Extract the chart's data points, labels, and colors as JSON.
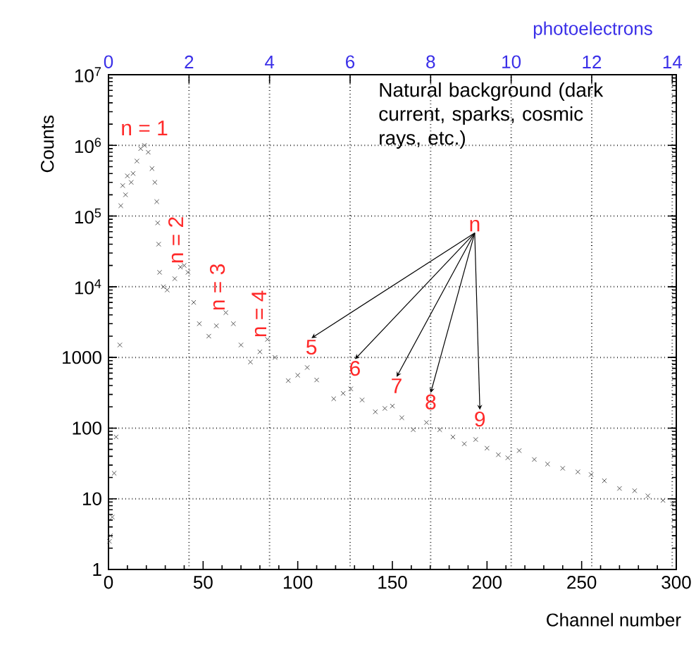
{
  "chart_data": {
    "type": "scatter",
    "xlabel": "Channel number",
    "ylabel": "Counts",
    "x2label": "photoelectrons",
    "xlim": [
      0,
      300
    ],
    "xticks": [
      0,
      50,
      100,
      150,
      200,
      250,
      300
    ],
    "x2lim": [
      0,
      14.1
    ],
    "x2ticks": [
      0,
      2,
      4,
      6,
      8,
      10,
      12,
      14
    ],
    "ylim": [
      1,
      10000000
    ],
    "yticks": [
      1,
      10,
      100,
      1000,
      {
        "value": 10000,
        "label": "10$^{4}$"
      },
      {
        "value": 100000,
        "label": "10$^{5}$"
      },
      {
        "value": 1000000,
        "label": "10$^{6}$"
      },
      {
        "value": 10000000,
        "label": "10$^{7}$"
      }
    ],
    "log": "y",
    "grid": true,
    "marker": "cross",
    "series": [
      {
        "color": "#555555",
        "x": [
          0.5,
          1,
          2,
          3,
          4,
          6,
          6.5,
          7.5,
          9,
          10,
          12,
          13,
          15,
          17,
          19,
          21,
          23,
          24.5,
          25.5,
          26,
          26.5,
          27,
          29,
          31,
          35,
          38,
          40,
          42,
          45,
          48,
          53,
          57,
          62,
          66,
          70,
          75,
          80,
          84,
          88,
          95,
          100,
          105,
          110,
          119,
          124,
          128,
          134,
          141,
          146,
          150,
          155,
          161,
          168,
          175,
          182,
          188,
          194,
          200,
          206,
          211,
          217,
          225,
          232,
          240,
          248,
          255,
          262,
          270,
          278,
          285,
          293,
          298
        ],
        "values": [
          2.5,
          3,
          5.5,
          23,
          75,
          1500,
          140000,
          270000,
          200000,
          370000,
          300000,
          400000,
          600000,
          900000,
          1000000,
          800000,
          470000,
          300000,
          160000,
          80000,
          40000,
          16000,
          10000,
          9000,
          13000,
          19000,
          20000,
          16000,
          6000,
          3000,
          2000,
          2800,
          4300,
          3000,
          1500,
          860,
          1200,
          1800,
          1000,
          470,
          560,
          720,
          480,
          260,
          310,
          360,
          250,
          170,
          190,
          205,
          140,
          95,
          120,
          95,
          75,
          60,
          69,
          52,
          42,
          38,
          48,
          36,
          31,
          27,
          24,
          22,
          18,
          14,
          13,
          11,
          9.5,
          8.5
        ]
      }
    ],
    "annotations": [
      {
        "text": "n = 1",
        "x": 19,
        "y": 1000000
      },
      {
        "text": "n = 2",
        "x": 40,
        "y": 20000
      },
      {
        "text": "n = 3",
        "x": 62,
        "y": 4300
      },
      {
        "text": "n = 4",
        "x": 84,
        "y": 1800
      },
      {
        "text": "5",
        "x": 105,
        "y": 720
      },
      {
        "text": "6",
        "x": 128,
        "y": 360
      },
      {
        "text": "7",
        "x": 150,
        "y": 205
      },
      {
        "text": "8",
        "x": 168,
        "y": 120
      },
      {
        "text": "9",
        "x": 194,
        "y": 69
      },
      "n",
      "Natural background (dark current, sparks, cosmic rays, etc.)"
    ]
  }
}
